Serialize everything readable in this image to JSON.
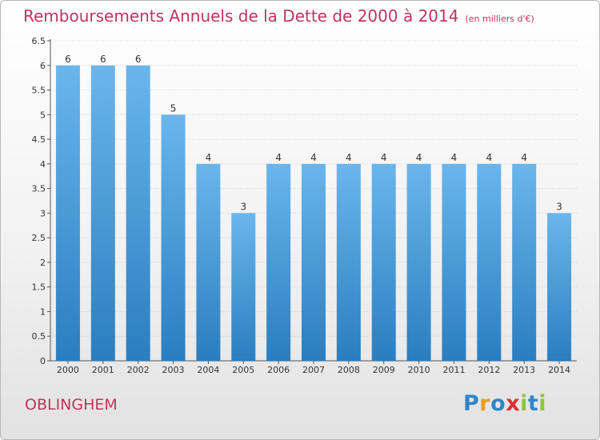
{
  "title": "Remboursements Annuels de la Dette de 2000 à 2014",
  "unit_note": "(en milliers d'€)",
  "commune": "OBLINGHEM",
  "brand": {
    "letters": [
      "P",
      "r",
      "o",
      "x",
      "i",
      "t",
      "i"
    ],
    "colors": [
      "#2f87c9",
      "#f29a1d",
      "#2f87c9",
      "#d8312f",
      "#8cc63f",
      "#2f87c9",
      "#8cc63f"
    ]
  },
  "colors": {
    "bar_top": "#6ab6ec",
    "bar_bottom": "#2a7ec0",
    "title": "#c0345e"
  },
  "chart_data": {
    "type": "bar",
    "title": "Remboursements Annuels de la Dette de 2000 à 2014",
    "xlabel": "",
    "ylabel": "",
    "categories": [
      "2000",
      "2001",
      "2002",
      "2003",
      "2004",
      "2005",
      "2006",
      "2007",
      "2008",
      "2009",
      "2010",
      "2011",
      "2012",
      "2013",
      "2014"
    ],
    "values": [
      6,
      6,
      6,
      5,
      4,
      3,
      4,
      4,
      4,
      4,
      4,
      4,
      4,
      4,
      3
    ],
    "ylim": [
      0,
      6.5
    ],
    "yticks": [
      "0",
      "0.5",
      "1",
      "1.5",
      "2",
      "2.5",
      "3",
      "3.5",
      "4",
      "4.5",
      "5",
      "5.5",
      "6",
      "6.5"
    ],
    "grid": true
  }
}
